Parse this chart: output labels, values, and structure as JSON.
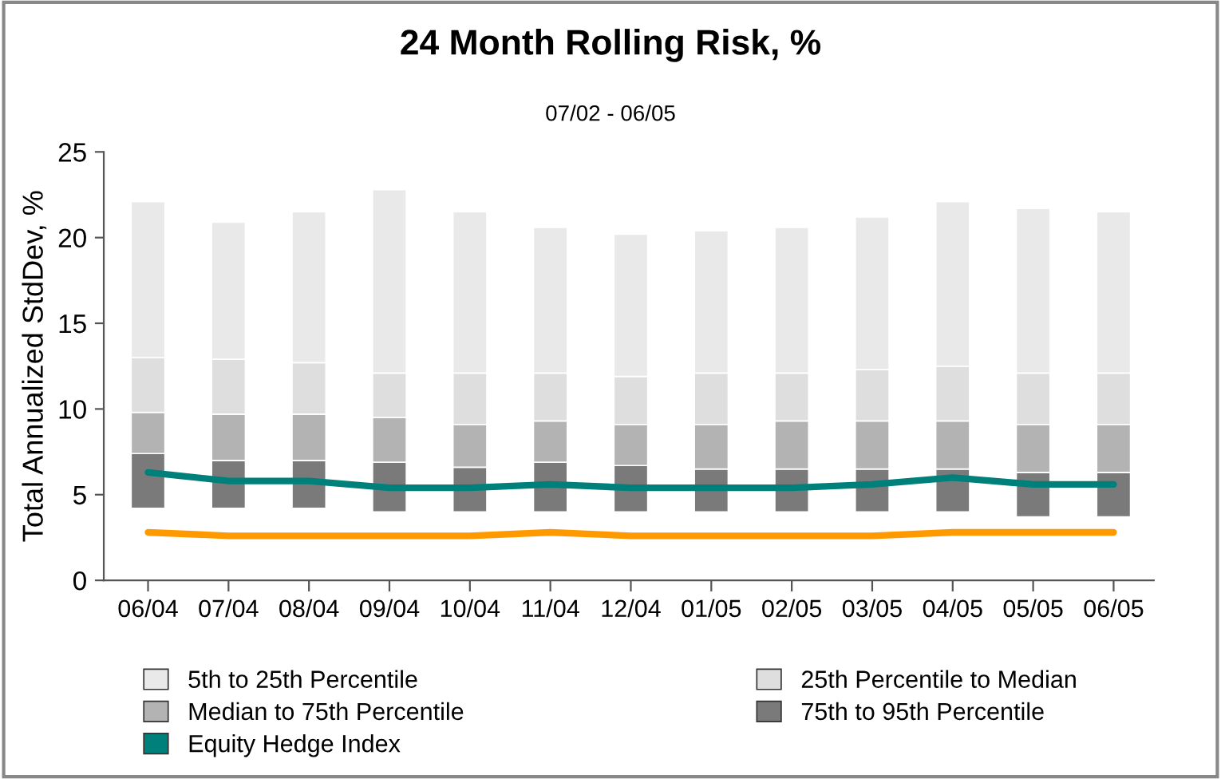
{
  "chart_data": {
    "type": "bar",
    "title": "24 Month Rolling Risk, %",
    "subtitle": "07/02 - 06/05",
    "ylabel": "Total Annualized StdDev, %",
    "categories": [
      "06/04",
      "07/04",
      "08/04",
      "09/04",
      "10/04",
      "11/04",
      "12/04",
      "01/05",
      "02/05",
      "03/05",
      "04/05",
      "05/05",
      "06/05"
    ],
    "series": [
      {
        "name": "75th to 95th Percentile",
        "color": "#7a7a7a",
        "base": [
          4.2,
          4.2,
          4.2,
          4.0,
          4.0,
          4.0,
          4.0,
          4.0,
          4.0,
          4.0,
          4.0,
          3.7,
          3.7
        ],
        "values": [
          3.2,
          2.8,
          2.8,
          2.9,
          2.6,
          2.9,
          2.7,
          2.5,
          2.5,
          2.5,
          2.5,
          2.6,
          2.6
        ]
      },
      {
        "name": "Median to 75th Percentile",
        "color": "#b3b3b3",
        "base": [
          7.4,
          7.0,
          7.0,
          6.9,
          6.6,
          6.9,
          6.7,
          6.5,
          6.5,
          6.5,
          6.5,
          6.3,
          6.3
        ],
        "values": [
          2.4,
          2.7,
          2.7,
          2.6,
          2.5,
          2.4,
          2.4,
          2.6,
          2.8,
          2.8,
          2.8,
          2.8,
          2.8
        ]
      },
      {
        "name": "25th Percentile to Median",
        "color": "#dedede",
        "base": [
          9.8,
          9.7,
          9.7,
          9.5,
          9.1,
          9.3,
          9.1,
          9.1,
          9.3,
          9.3,
          9.3,
          9.1,
          9.1
        ],
        "values": [
          3.2,
          3.2,
          3.0,
          2.6,
          3.0,
          2.8,
          2.8,
          3.0,
          2.8,
          3.0,
          3.2,
          3.0,
          3.0
        ]
      },
      {
        "name": "5th to 25th Percentile",
        "color": "#e9e9e9",
        "base": [
          13.0,
          12.9,
          12.7,
          12.1,
          12.1,
          12.1,
          11.9,
          12.1,
          12.1,
          12.3,
          12.5,
          12.1,
          12.1
        ],
        "values": [
          9.1,
          8.0,
          8.8,
          10.7,
          9.4,
          8.5,
          8.3,
          8.3,
          8.5,
          8.9,
          9.6,
          9.6,
          9.4
        ]
      },
      {
        "type": "line",
        "color": "#ff9900",
        "values": [
          2.8,
          2.6,
          2.6,
          2.6,
          2.6,
          2.8,
          2.6,
          2.6,
          2.6,
          2.6,
          2.8,
          2.8,
          2.8
        ]
      },
      {
        "type": "line",
        "name": "Equity Hedge Index",
        "color": "#00807a",
        "values": [
          6.3,
          5.8,
          5.8,
          5.4,
          5.4,
          5.6,
          5.4,
          5.4,
          5.4,
          5.6,
          6.0,
          5.6,
          5.6
        ]
      }
    ],
    "ylim": [
      0,
      25
    ],
    "yticks": [
      0,
      5,
      10,
      15,
      20,
      25
    ],
    "grid": false,
    "legend": "bottom"
  }
}
